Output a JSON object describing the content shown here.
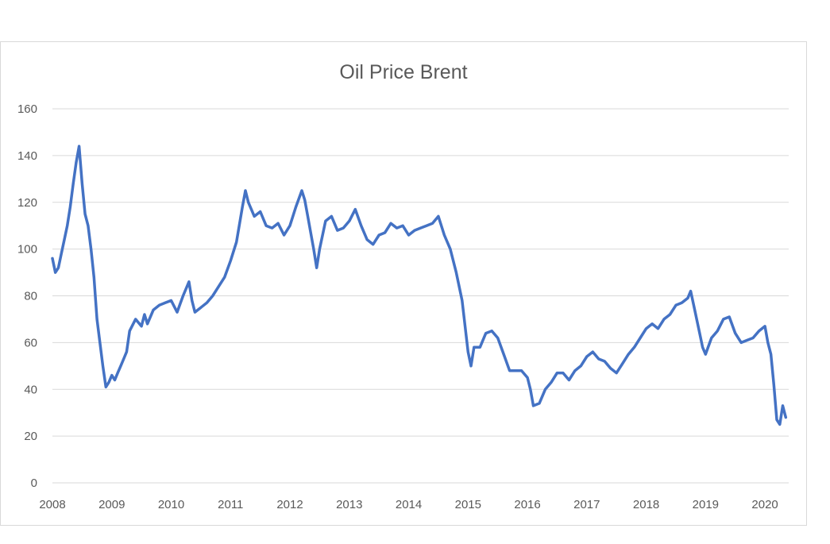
{
  "chart_data": {
    "type": "line",
    "title": "Oil Price Brent",
    "xlabel": "",
    "ylabel": "",
    "ylim": [
      0,
      160
    ],
    "y_ticks": [
      0,
      20,
      40,
      60,
      80,
      100,
      120,
      140,
      160
    ],
    "y_tick_labels": [
      "0",
      "20",
      "40",
      "60",
      "80",
      "100",
      "120",
      "140",
      "160"
    ],
    "xlim": [
      2008.0,
      2020.4
    ],
    "x_ticks": [
      2008,
      2009,
      2010,
      2011,
      2012,
      2013,
      2014,
      2015,
      2016,
      2017,
      2018,
      2019,
      2020
    ],
    "x_tick_labels": [
      "2008",
      "2009",
      "2010",
      "2011",
      "2012",
      "2013",
      "2014",
      "2015",
      "2016",
      "2017",
      "2018",
      "2019",
      "2020"
    ],
    "grid": true,
    "legend": "none",
    "line_color": "#4472C4",
    "grid_color": "#d9d9d9",
    "series": [
      {
        "name": "Brent",
        "x": [
          2008.0,
          2008.05,
          2008.1,
          2008.15,
          2008.2,
          2008.25,
          2008.3,
          2008.35,
          2008.4,
          2008.45,
          2008.5,
          2008.55,
          2008.6,
          2008.65,
          2008.7,
          2008.75,
          2008.8,
          2008.85,
          2008.9,
          2008.95,
          2009.0,
          2009.05,
          2009.1,
          2009.15,
          2009.2,
          2009.25,
          2009.3,
          2009.4,
          2009.5,
          2009.55,
          2009.6,
          2009.7,
          2009.8,
          2009.9,
          2010.0,
          2010.1,
          2010.2,
          2010.3,
          2010.35,
          2010.4,
          2010.5,
          2010.6,
          2010.7,
          2010.8,
          2010.9,
          2011.0,
          2011.1,
          2011.2,
          2011.25,
          2011.3,
          2011.4,
          2011.5,
          2011.6,
          2011.7,
          2011.8,
          2011.9,
          2012.0,
          2012.1,
          2012.2,
          2012.25,
          2012.3,
          2012.4,
          2012.45,
          2012.5,
          2012.6,
          2012.7,
          2012.8,
          2012.9,
          2013.0,
          2013.1,
          2013.2,
          2013.3,
          2013.4,
          2013.5,
          2013.6,
          2013.7,
          2013.8,
          2013.9,
          2014.0,
          2014.1,
          2014.2,
          2014.3,
          2014.4,
          2014.5,
          2014.6,
          2014.7,
          2014.8,
          2014.9,
          2015.0,
          2015.05,
          2015.1,
          2015.2,
          2015.3,
          2015.4,
          2015.5,
          2015.6,
          2015.7,
          2015.8,
          2015.9,
          2016.0,
          2016.05,
          2016.1,
          2016.2,
          2016.3,
          2016.4,
          2016.5,
          2016.6,
          2016.7,
          2016.8,
          2016.9,
          2017.0,
          2017.1,
          2017.2,
          2017.3,
          2017.4,
          2017.5,
          2017.6,
          2017.7,
          2017.8,
          2017.9,
          2018.0,
          2018.1,
          2018.2,
          2018.3,
          2018.4,
          2018.5,
          2018.6,
          2018.7,
          2018.75,
          2018.8,
          2018.9,
          2018.95,
          2019.0,
          2019.1,
          2019.2,
          2019.3,
          2019.4,
          2019.5,
          2019.6,
          2019.7,
          2019.8,
          2019.9,
          2020.0,
          2020.05,
          2020.1,
          2020.15,
          2020.2,
          2020.25,
          2020.3,
          2020.35
        ],
        "values": [
          96,
          90,
          92,
          98,
          104,
          110,
          118,
          128,
          137,
          144,
          128,
          115,
          110,
          100,
          88,
          70,
          60,
          50,
          41,
          43,
          46,
          44,
          47,
          50,
          53,
          56,
          65,
          70,
          67,
          72,
          68,
          74,
          76,
          77,
          78,
          73,
          80,
          86,
          78,
          73,
          75,
          77,
          80,
          84,
          88,
          95,
          103,
          118,
          125,
          120,
          114,
          116,
          110,
          109,
          111,
          106,
          110,
          118,
          125,
          121,
          114,
          100,
          92,
          100,
          112,
          114,
          108,
          109,
          112,
          117,
          110,
          104,
          102,
          106,
          107,
          111,
          109,
          110,
          106,
          108,
          109,
          110,
          111,
          114,
          106,
          100,
          90,
          78,
          56,
          50,
          58,
          58,
          64,
          65,
          62,
          55,
          48,
          48,
          48,
          45,
          40,
          33,
          34,
          40,
          43,
          47,
          47,
          44,
          48,
          50,
          54,
          56,
          53,
          52,
          49,
          47,
          51,
          55,
          58,
          62,
          66,
          68,
          66,
          70,
          72,
          76,
          77,
          79,
          82,
          76,
          64,
          58,
          55,
          62,
          65,
          70,
          71,
          64,
          60,
          61,
          62,
          65,
          67,
          60,
          55,
          42,
          27,
          25,
          33,
          28
        ],
        "color": "#4472C4"
      }
    ]
  }
}
